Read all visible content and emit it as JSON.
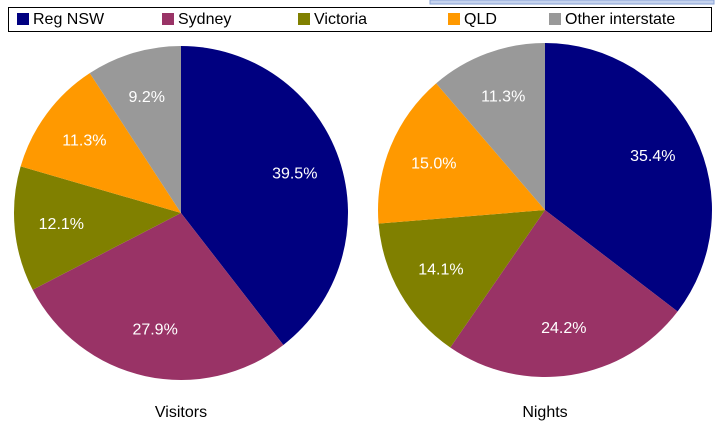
{
  "chart_data": [
    {
      "type": "pie",
      "title": "Visitors",
      "categories": [
        "Reg NSW",
        "Sydney",
        "Victoria",
        "QLD",
        "Other interstate"
      ],
      "values": [
        39.5,
        27.9,
        12.1,
        11.3,
        9.2
      ],
      "value_labels": [
        "39.5%",
        "27.9%",
        "12.1%",
        "11.3%",
        "9.2%"
      ],
      "colors": [
        "#000080",
        "#993366",
        "#808000",
        "#ff9900",
        "#999999"
      ]
    },
    {
      "type": "pie",
      "title": "Nights",
      "categories": [
        "Reg NSW",
        "Sydney",
        "Victoria",
        "QLD",
        "Other interstate"
      ],
      "values": [
        35.4,
        24.2,
        14.1,
        15.0,
        11.3
      ],
      "value_labels": [
        "35.4%",
        "24.2%",
        "14.1%",
        "15.0%",
        "11.3%"
      ],
      "colors": [
        "#000080",
        "#993366",
        "#808000",
        "#ff9900",
        "#999999"
      ]
    }
  ]
}
